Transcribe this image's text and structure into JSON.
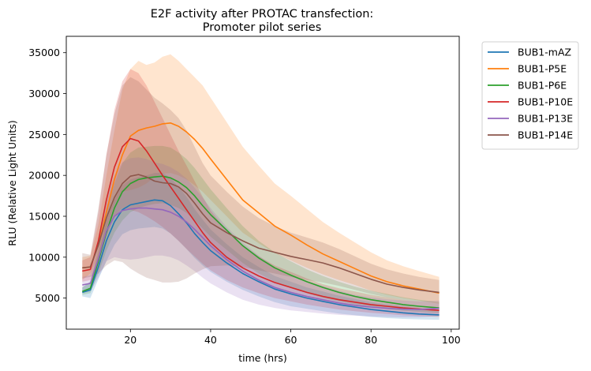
{
  "chart_data": {
    "type": "line",
    "title_line1": "E2F activity after PROTAC transfection:",
    "title_line2": "Promoter pilot series",
    "xlabel": "time (hrs)",
    "ylabel": "RLU (Relative Light Units)",
    "xlim": [
      4,
      102
    ],
    "ylim": [
      1200,
      37000
    ],
    "xticks": [
      20,
      40,
      60,
      80,
      100
    ],
    "yticks": [
      5000,
      10000,
      15000,
      20000,
      25000,
      30000,
      35000
    ],
    "legend_position": "outside-top-right",
    "grid": false,
    "x": [
      8,
      10,
      12,
      14,
      16,
      18,
      20,
      22,
      24,
      26,
      28,
      30,
      32,
      34,
      36,
      38,
      40,
      44,
      48,
      52,
      56,
      60,
      64,
      68,
      72,
      76,
      80,
      84,
      88,
      92,
      97
    ],
    "series": [
      {
        "name": "BUB1-mAZ",
        "color": "#1f77b4",
        "values": [
          5700,
          6000,
          8800,
          12000,
          14300,
          15800,
          16400,
          16600,
          16800,
          17000,
          16900,
          16300,
          15300,
          14200,
          12900,
          11800,
          10800,
          9300,
          8000,
          7000,
          6100,
          5500,
          5000,
          4600,
          4200,
          3900,
          3600,
          3400,
          3200,
          3050,
          2950
        ],
        "lower": [
          5200,
          5000,
          7300,
          9500,
          11500,
          12800,
          13300,
          13500,
          13600,
          13700,
          13500,
          12900,
          12000,
          11000,
          9900,
          9000,
          8200,
          7000,
          6000,
          5200,
          4500,
          4000,
          3700,
          3400,
          3100,
          2900,
          2700,
          2550,
          2450,
          2400,
          2350
        ],
        "upper": [
          6300,
          7000,
          10300,
          14500,
          17000,
          18800,
          19500,
          19800,
          20000,
          20300,
          20300,
          19700,
          18600,
          17400,
          15900,
          14600,
          13400,
          11600,
          10000,
          8800,
          7700,
          7000,
          6300,
          5800,
          5300,
          4900,
          4500,
          4250,
          4000,
          3800,
          3600
        ]
      },
      {
        "name": "BUB1-P5E",
        "color": "#ff7f0e",
        "values": [
          8700,
          8800,
          11500,
          15500,
          19500,
          22500,
          24800,
          25500,
          25800,
          26000,
          26300,
          26400,
          26000,
          25300,
          24400,
          23300,
          22000,
          19500,
          17000,
          15400,
          13800,
          12700,
          11500,
          10400,
          9500,
          8600,
          7700,
          7000,
          6500,
          6100,
          5600
        ],
        "lower": [
          7200,
          8000,
          10000,
          13500,
          16500,
          18000,
          18200,
          18500,
          19000,
          19800,
          20200,
          20300,
          20000,
          19500,
          18800,
          18000,
          17000,
          15000,
          13000,
          11700,
          10500,
          9600,
          8700,
          7900,
          7200,
          6600,
          5900,
          5400,
          5000,
          4700,
          4300
        ],
        "upper": [
          10000,
          10200,
          14000,
          20000,
          25500,
          30500,
          33000,
          34000,
          33500,
          33800,
          34500,
          34800,
          34000,
          33000,
          32000,
          31000,
          29500,
          26500,
          23500,
          21200,
          19000,
          17500,
          15900,
          14300,
          13000,
          11800,
          10600,
          9600,
          8900,
          8300,
          7600
        ]
      },
      {
        "name": "BUB1-P6E",
        "color": "#2ca02c",
        "values": [
          5800,
          6200,
          9500,
          13000,
          16000,
          18000,
          19000,
          19500,
          19700,
          19800,
          19900,
          19700,
          19200,
          18500,
          17500,
          16300,
          15200,
          13300,
          11400,
          9900,
          8700,
          7800,
          7000,
          6300,
          5700,
          5200,
          4800,
          4500,
          4200,
          4000,
          3800
        ],
        "lower": [
          5400,
          5600,
          8000,
          10800,
          13000,
          14500,
          15500,
          16000,
          16300,
          16500,
          16600,
          16400,
          16000,
          15400,
          14500,
          13500,
          12500,
          10900,
          9300,
          8000,
          7000,
          6200,
          5600,
          5000,
          4600,
          4200,
          3900,
          3650,
          3450,
          3300,
          3150
        ],
        "upper": [
          6300,
          7000,
          11000,
          15500,
          19000,
          21500,
          22800,
          23400,
          23500,
          23600,
          23600,
          23400,
          22800,
          22000,
          20900,
          19600,
          18300,
          16000,
          13800,
          12000,
          10600,
          9500,
          8500,
          7700,
          7000,
          6400,
          5900,
          5500,
          5100,
          4800,
          4500
        ]
      },
      {
        "name": "BUB1-P10E",
        "color": "#d62728",
        "values": [
          8300,
          8500,
          12000,
          17000,
          21000,
          23500,
          24500,
          24200,
          23000,
          21500,
          20000,
          18600,
          17200,
          15800,
          14400,
          13000,
          11800,
          10000,
          8700,
          7700,
          6900,
          6300,
          5700,
          5200,
          4800,
          4500,
          4200,
          4000,
          3800,
          3650,
          3500
        ],
        "lower": [
          7000,
          7200,
          9500,
          12500,
          15000,
          16000,
          15800,
          15500,
          15000,
          14400,
          13700,
          12900,
          12000,
          11000,
          10100,
          9200,
          8400,
          7200,
          6300,
          5600,
          5000,
          4600,
          4200,
          3900,
          3600,
          3400,
          3200,
          3050,
          2900,
          2800,
          2700
        ],
        "upper": [
          9600,
          10000,
          15500,
          22500,
          28000,
          31500,
          33000,
          32500,
          31000,
          29000,
          27000,
          25000,
          23000,
          21200,
          19300,
          17400,
          15700,
          13300,
          11500,
          10100,
          9000,
          8200,
          7400,
          6700,
          6200,
          5800,
          5400,
          5100,
          4800,
          4600,
          4400
        ]
      },
      {
        "name": "BUB1-P13E",
        "color": "#9467bd",
        "values": [
          6600,
          6800,
          9800,
          13200,
          15000,
          15700,
          15900,
          16000,
          16000,
          15900,
          15800,
          15500,
          15000,
          14300,
          13400,
          12400,
          11400,
          9700,
          8300,
          7200,
          6300,
          5700,
          5200,
          4800,
          4400,
          4100,
          3900,
          3750,
          3650,
          3600,
          3750
        ],
        "lower": [
          5600,
          5800,
          7500,
          9500,
          10000,
          9800,
          9700,
          9800,
          10000,
          10200,
          10200,
          10000,
          9600,
          9000,
          8300,
          7500,
          6800,
          5700,
          4800,
          4200,
          3800,
          3500,
          3300,
          3100,
          2950,
          2850,
          2750,
          2700,
          2650,
          2650,
          2800
        ],
        "upper": [
          7600,
          7800,
          12100,
          17000,
          20000,
          21600,
          22100,
          22200,
          22000,
          21600,
          21400,
          21000,
          20400,
          19600,
          18500,
          17300,
          16000,
          13700,
          11800,
          10200,
          8800,
          7900,
          7100,
          6500,
          5900,
          5400,
          5100,
          4850,
          4700,
          4600,
          4700
        ]
      },
      {
        "name": "BUB1-P14E",
        "color": "#8c564b",
        "values": [
          8700,
          8800,
          11500,
          14800,
          17300,
          19000,
          19900,
          20100,
          19800,
          19300,
          19100,
          19000,
          18600,
          17800,
          16600,
          15300,
          14200,
          13000,
          12000,
          11100,
          10600,
          10100,
          9700,
          9300,
          8700,
          8000,
          7300,
          6700,
          6300,
          6000,
          5700
        ],
        "lower": [
          7400,
          7600,
          8000,
          9000,
          9600,
          9400,
          8600,
          8000,
          7500,
          7200,
          6900,
          6900,
          7000,
          7400,
          8000,
          8500,
          8900,
          9000,
          8800,
          8400,
          8000,
          7600,
          7200,
          6900,
          6500,
          6000,
          5500,
          5100,
          4800,
          4600,
          4400
        ],
        "upper": [
          10500,
          10300,
          16000,
          22500,
          27500,
          31000,
          32000,
          31500,
          30500,
          29500,
          28800,
          28000,
          27000,
          25500,
          23500,
          21500,
          20000,
          18000,
          16200,
          14800,
          13800,
          13000,
          12400,
          11800,
          11000,
          10100,
          9200,
          8500,
          8000,
          7600,
          7200
        ]
      }
    ]
  }
}
